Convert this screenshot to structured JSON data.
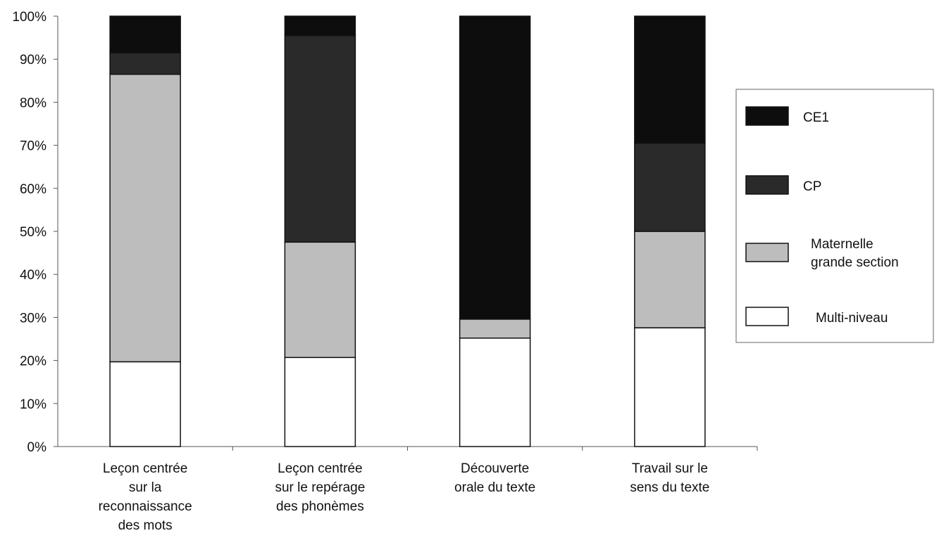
{
  "chart_data": {
    "type": "bar",
    "stacked": true,
    "categories": [
      [
        "Leçon centrée",
        "sur la",
        "reconnaissance",
        "des mots"
      ],
      [
        "Leçon centrée",
        "sur le repérage",
        "des phonèmes"
      ],
      [
        "Découverte",
        "orale du texte"
      ],
      [
        "Travail sur le",
        "sens du texte"
      ]
    ],
    "ylim": [
      0,
      100
    ],
    "yticks": [
      "0%",
      "10%",
      "20%",
      "30%",
      "40%",
      "50%",
      "60%",
      "70%",
      "80%",
      "90%",
      "100%"
    ],
    "series": [
      {
        "name": "Multi-niveau",
        "values": [
          19.7,
          20.7,
          25.2,
          27.6
        ],
        "color": "#ffffff"
      },
      {
        "name": "Maternelle grande section",
        "values": [
          66.8,
          26.8,
          4.4,
          22.4
        ],
        "color": "#bdbdbd"
      },
      {
        "name": "CP",
        "values": [
          5.0,
          48.0,
          0,
          20.5
        ],
        "color": "#2a2a2a"
      },
      {
        "name": "CE1",
        "values": [
          8.5,
          4.5,
          70.4,
          29.5
        ],
        "color": "#0d0d0d"
      }
    ],
    "legend_order": [
      {
        "name": "CE1",
        "lines": [
          "CE1"
        ],
        "color": "#0d0d0d"
      },
      {
        "name": "CP",
        "lines": [
          "CP"
        ],
        "color": "#2a2a2a"
      },
      {
        "name": "Maternelle grande section",
        "lines": [
          "Maternelle",
          "grande section"
        ],
        "color": "#bdbdbd"
      },
      {
        "name": "Multi-niveau",
        "lines": [
          "Multi-niveau"
        ],
        "color": "#ffffff"
      }
    ],
    "legend_position": "right",
    "grid": false,
    "title": "",
    "xlabel": "",
    "ylabel": ""
  }
}
